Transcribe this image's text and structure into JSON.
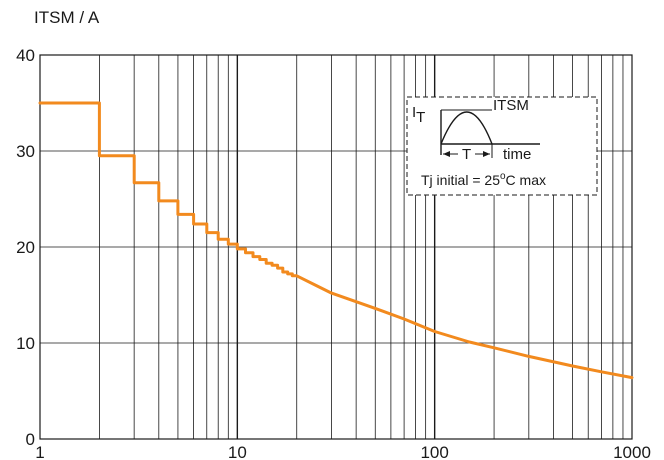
{
  "chart_data": {
    "type": "line",
    "title": "",
    "ylabel": "ITSM / A",
    "xlabel": "",
    "x_scale": "log",
    "xlim": [
      1,
      1000
    ],
    "ylim": [
      0,
      40
    ],
    "grid": true,
    "x_tick_labels": [
      "1",
      "10",
      "100",
      "1000"
    ],
    "y_tick_labels": [
      "0",
      "10",
      "20",
      "30",
      "40"
    ],
    "series": [
      {
        "color": "#f28a1e",
        "points": [
          [
            1,
            35
          ],
          [
            2,
            35
          ],
          [
            2,
            29.5
          ],
          [
            3,
            29.5
          ],
          [
            3,
            26.7
          ],
          [
            4,
            26.7
          ],
          [
            4,
            24.8
          ],
          [
            5,
            24.8
          ],
          [
            5,
            23.4
          ],
          [
            6,
            23.4
          ],
          [
            6,
            22.4
          ],
          [
            7,
            22.4
          ],
          [
            7,
            21.5
          ],
          [
            8,
            21.5
          ],
          [
            8,
            20.8
          ],
          [
            9,
            20.8
          ],
          [
            9,
            20.3
          ],
          [
            10,
            20.3
          ],
          [
            10,
            19.8
          ],
          [
            11,
            19.8
          ],
          [
            11,
            19.4
          ],
          [
            12,
            19.4
          ],
          [
            12,
            19.0
          ],
          [
            13,
            19.0
          ],
          [
            13,
            18.7
          ],
          [
            14,
            18.7
          ],
          [
            14,
            18.3
          ],
          [
            15,
            18.3
          ],
          [
            15,
            18.1
          ],
          [
            16,
            18.1
          ],
          [
            16,
            17.8
          ],
          [
            17,
            17.8
          ],
          [
            17,
            17.4
          ],
          [
            18,
            17.4
          ],
          [
            18,
            17.2
          ],
          [
            19,
            17.2
          ],
          [
            19,
            17.0
          ],
          [
            20,
            17.0
          ],
          [
            25,
            16.0
          ],
          [
            30,
            15.2
          ],
          [
            40,
            14.3
          ],
          [
            50,
            13.6
          ],
          [
            70,
            12.5
          ],
          [
            100,
            11.2
          ],
          [
            150,
            10.1
          ],
          [
            200,
            9.5
          ],
          [
            300,
            8.6
          ],
          [
            500,
            7.6
          ],
          [
            700,
            7.0
          ],
          [
            1000,
            6.4
          ]
        ]
      }
    ],
    "inset": {
      "it_label": "I",
      "it_sub": "T",
      "itsm_label": "I",
      "itsm_sub": "TSM",
      "t_label": "T",
      "time_label": "time",
      "caption_prefix": "Tj initial = 25",
      "caption_sup": "o",
      "caption_suffix": "C max"
    }
  }
}
